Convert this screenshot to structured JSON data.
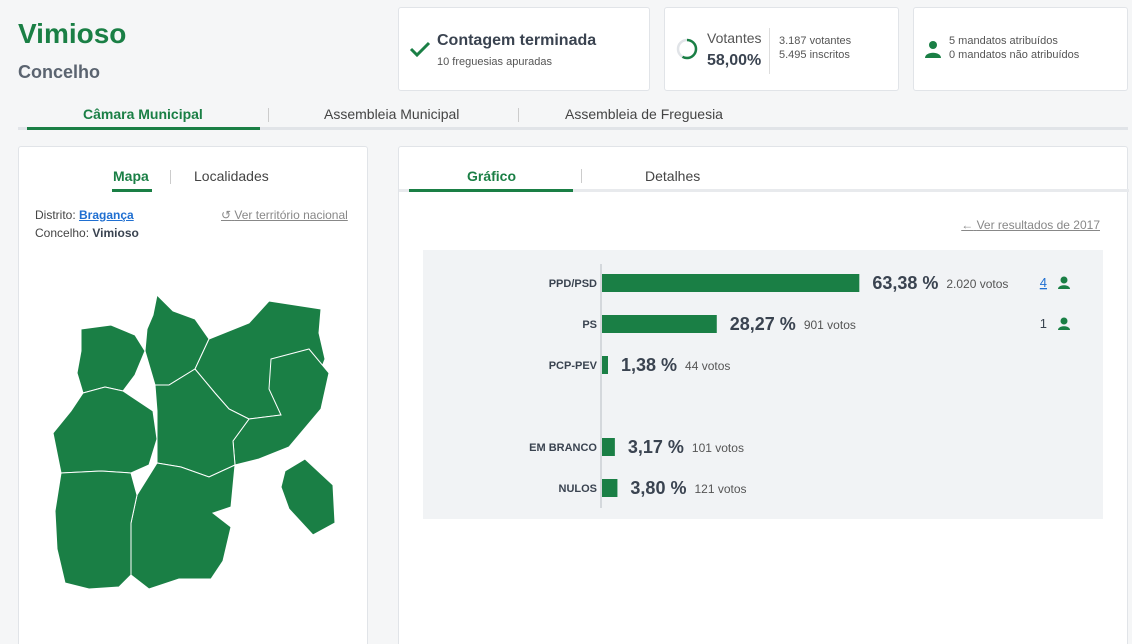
{
  "header": {
    "title": "Vimioso",
    "subtitle": "Concelho"
  },
  "status": {
    "title": "Contagem terminada",
    "detail": "10 freguesias apuradas"
  },
  "voters": {
    "label": "Votantes",
    "percent": "58,00%",
    "voters": "3.187 votantes",
    "registered": "5.495 inscritos",
    "turnout_fraction": 0.58
  },
  "mandates": {
    "assigned": "5 mandatos atribuídos",
    "unassigned": "0 mandatos não atribuídos"
  },
  "top_tabs": [
    "Câmara Municipal",
    "Assembleia Municipal",
    "Assembleia de Freguesia"
  ],
  "left": {
    "tabs": [
      "Mapa",
      "Localidades"
    ],
    "district_label": "Distrito:",
    "district_value": "Bragança",
    "county_label": "Concelho:",
    "county_value": "Vimioso",
    "national_link": "Ver território nacional"
  },
  "right": {
    "tabs": [
      "Gráfico",
      "Detalhes"
    ],
    "previous_link": "Ver resultados de 2017"
  },
  "colors": {
    "accent": "#1a7f45",
    "link": "#1f6fd1"
  },
  "chart_data": {
    "type": "bar",
    "orientation": "horizontal",
    "categories": [
      "PPD/PSD",
      "PS",
      "PCP-PEV",
      "EM BRANCO",
      "NULOS"
    ],
    "values": [
      63.38,
      28.27,
      1.38,
      3.17,
      3.8
    ],
    "value_labels": [
      "63,38 %",
      "28,27 %",
      "1,38 %",
      "3,17 %",
      "3,80 %"
    ],
    "votes": [
      "2.020 votos",
      "901 votos",
      "44 votos",
      "101 votos",
      "121 votos"
    ],
    "mandates": [
      "4",
      "1",
      "",
      "",
      ""
    ],
    "unit": "%",
    "xlim": [
      0,
      100
    ]
  }
}
